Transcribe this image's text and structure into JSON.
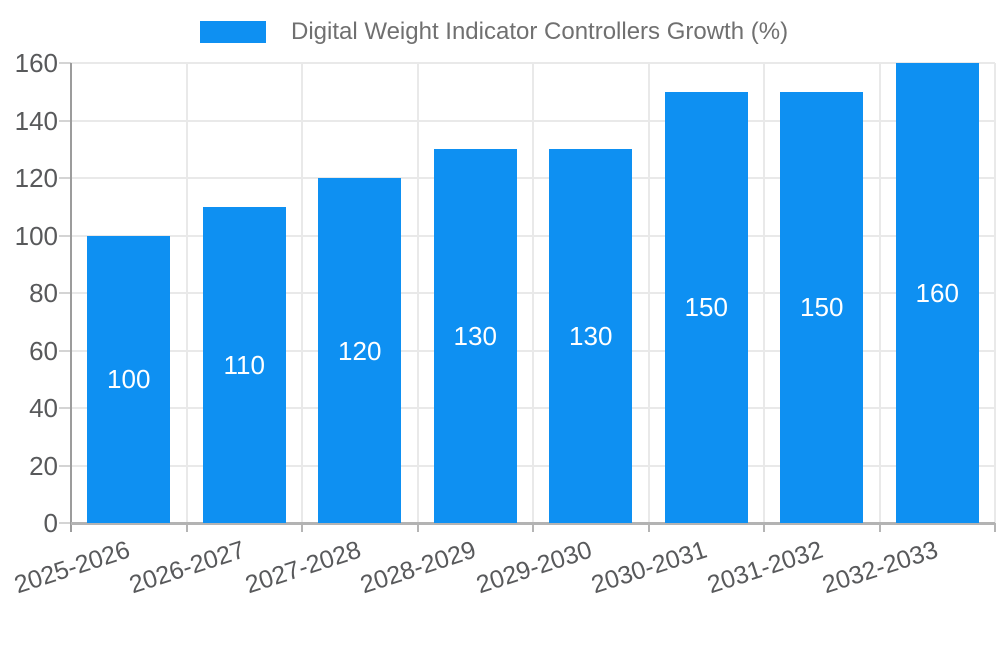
{
  "chart_data": {
    "type": "bar",
    "series_name": "Digital Weight Indicator Controllers Growth (%)",
    "categories": [
      "2025-2026",
      "2026-2027",
      "2027-2028",
      "2028-2029",
      "2029-2030",
      "2030-2031",
      "2031-2032",
      "2032-2033"
    ],
    "values": [
      100,
      110,
      120,
      130,
      130,
      150,
      150,
      160
    ],
    "ylim": [
      0,
      160
    ],
    "yticks": [
      0,
      20,
      40,
      60,
      80,
      100,
      120,
      140,
      160
    ],
    "grid": true,
    "legend": {
      "position": "top",
      "label": "Digital Weight Indicator Controllers Growth (%)"
    },
    "colors": {
      "bar": "#0e90f2",
      "bar_label": "#ffffff",
      "axis_text": "#58595b",
      "legend_text": "#707070",
      "gridline": "#e9e9e9",
      "y_axis_line": "#9c9c9c",
      "x_axis_line": "#b3b3b3",
      "y_tick": "#d4d4d4",
      "x_tick": "#b5b5b5",
      "background": "#ffffff"
    }
  }
}
